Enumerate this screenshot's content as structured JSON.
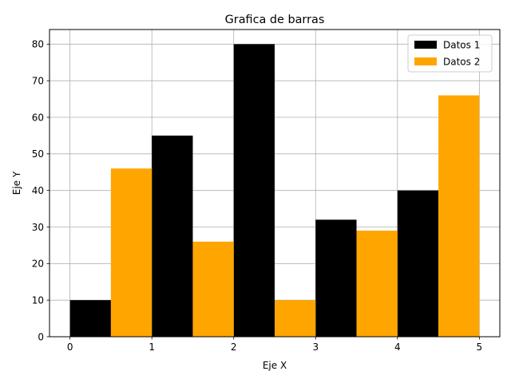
{
  "chart_data": {
    "type": "bar",
    "title": "Grafica de barras",
    "xlabel": "Eje X",
    "ylabel": "Eje Y",
    "xlim": [
      -0.25,
      5.25
    ],
    "ylim": [
      0,
      84
    ],
    "xticks": [
      0,
      1,
      2,
      3,
      4,
      5
    ],
    "yticks": [
      0,
      10,
      20,
      30,
      40,
      50,
      60,
      70,
      80
    ],
    "grid": true,
    "legend_position": "top-right",
    "bar_width": 0.5,
    "series": [
      {
        "name": "Datos 1",
        "color": "#000000",
        "x": [
          0.25,
          1.25,
          2.25,
          3.25,
          4.25
        ],
        "values": [
          10,
          55,
          80,
          32,
          40
        ]
      },
      {
        "name": "Datos 2",
        "color": "#ffa500",
        "x": [
          0.75,
          1.75,
          2.75,
          3.75,
          4.75
        ],
        "values": [
          46,
          26,
          10,
          29,
          66
        ]
      }
    ]
  }
}
